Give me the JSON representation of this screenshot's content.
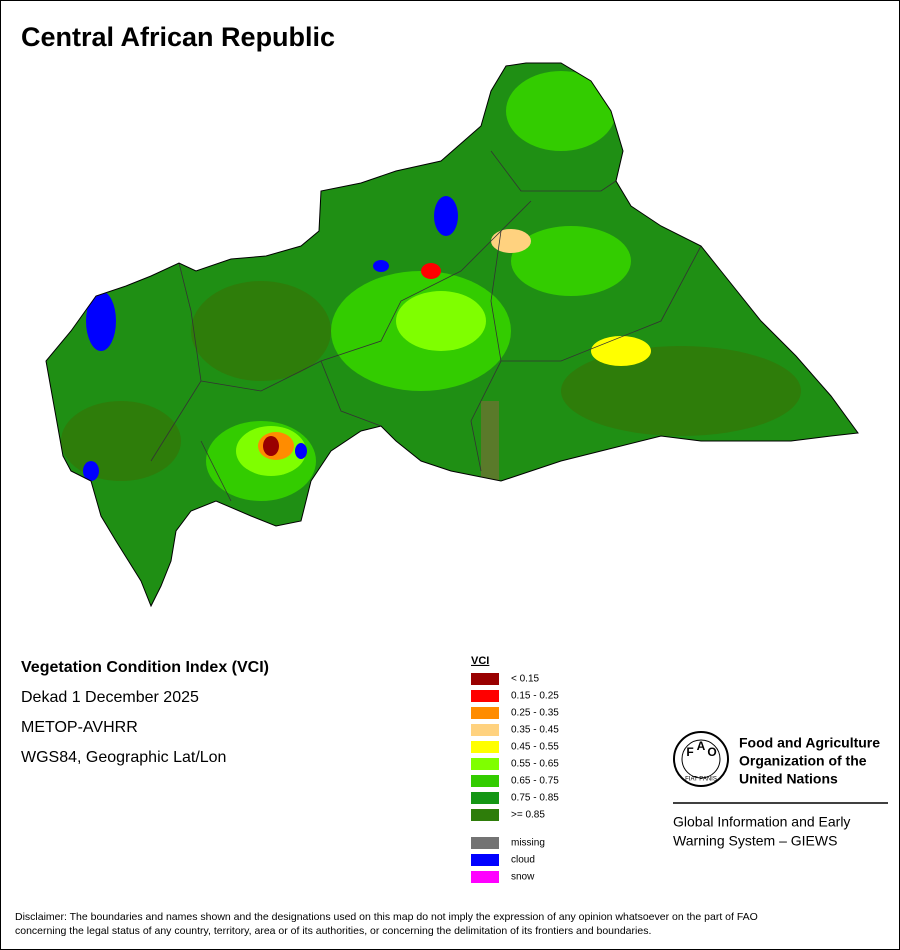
{
  "title": "Central African Republic",
  "info": [
    "Vegetation Condition Index (VCI)",
    "Dekad 1 December 2025",
    "METOP-AVHRR",
    "WGS84, Geographic Lat/Lon"
  ],
  "legend": {
    "title": "VCI",
    "classes": [
      {
        "label": "< 0.15",
        "color": "#990000"
      },
      {
        "label": "0.15 - 0.25",
        "color": "#ff0000"
      },
      {
        "label": "0.25 - 0.35",
        "color": "#ff8c00"
      },
      {
        "label": "0.35 - 0.45",
        "color": "#ffd27f"
      },
      {
        "label": "0.45 - 0.55",
        "color": "#ffff00"
      },
      {
        "label": "0.55 - 0.65",
        "color": "#7fff00"
      },
      {
        "label": "0.65 - 0.75",
        "color": "#33cc00"
      },
      {
        "label": "0.75 - 0.85",
        "color": "#149614"
      },
      {
        "label": ">= 0.85",
        "color": "#2e7d0a"
      }
    ],
    "other": [
      {
        "label": "missing",
        "color": "#737373"
      },
      {
        "label": "cloud",
        "color": "#0000ff"
      },
      {
        "label": "snow",
        "color": "#ff00ff"
      }
    ]
  },
  "logo": {
    "emblem": [
      "F",
      "A",
      "O",
      "FIAT PANIS"
    ],
    "org": [
      "Food and Agriculture",
      "Organization of the",
      "United Nations"
    ],
    "system": [
      "Global Information and Early",
      "Warning System – GIEWS"
    ]
  },
  "disclaimer": [
    "Disclaimer: The boundaries and names shown and the designations used on this map do not imply the expression of any opinion whatsoever on the part of FAO",
    "concerning the legal status of any country, territory, area or of its authorities, or concerning the delimitation of its frontiers and boundaries."
  ]
}
